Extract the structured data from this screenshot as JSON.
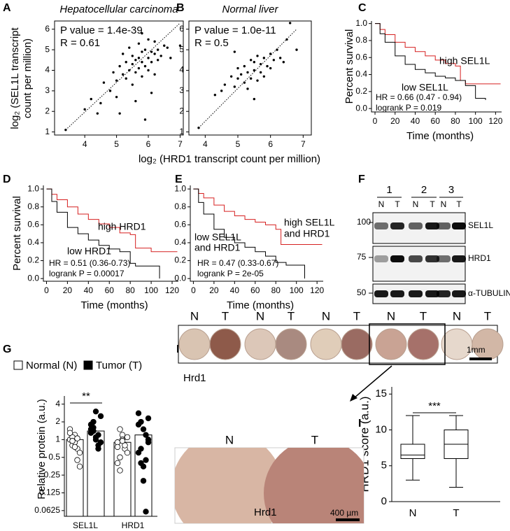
{
  "chart_data": [
    {
      "type": "scatter",
      "panel": "A",
      "title": "Hepatocellular carcinoma",
      "annotations": [
        "P value = 1.4e-39",
        "R = 0.61"
      ],
      "ylabel": [
        "log₂ (SEL1L transcript",
        "count per million)"
      ],
      "xlabel": "log₂ (HRD1 transcript count per million)",
      "x": [
        3.4,
        4.0,
        4.2,
        4.5,
        4.6,
        4.8,
        4.9,
        5.0,
        5.0,
        5.1,
        5.2,
        5.2,
        5.3,
        5.3,
        5.4,
        5.4,
        5.5,
        5.5,
        5.5,
        5.6,
        5.6,
        5.7,
        5.7,
        5.7,
        5.8,
        5.8,
        5.8,
        5.9,
        5.9,
        6.0,
        6.0,
        6.0,
        6.1,
        6.1,
        6.2,
        6.2,
        6.3,
        6.3,
        6.4,
        6.5,
        6.6,
        6.7,
        7.0,
        5.6,
        5.9,
        6.1,
        4.4,
        5.1,
        5.8,
        6.2
      ],
      "y": [
        1.1,
        2.1,
        2.6,
        2.4,
        3.4,
        3.0,
        3.9,
        3.5,
        2.7,
        4.2,
        3.8,
        4.8,
        3.6,
        4.4,
        4.0,
        5.1,
        4.3,
        3.3,
        4.7,
        4.5,
        3.9,
        4.6,
        4.1,
        5.3,
        4.4,
        4.9,
        3.7,
        4.2,
        5.0,
        4.6,
        4.0,
        5.5,
        4.4,
        4.9,
        4.8,
        5.4,
        4.5,
        5.0,
        4.7,
        5.2,
        5.1,
        4.6,
        5.2,
        2.5,
        1.6,
        2.9,
        1.9,
        1.9,
        5.8,
        3.8
      ],
      "fit": {
        "x": [
          3.4,
          7.0
        ],
        "y": [
          1.1,
          6.3
        ]
      },
      "xlim": [
        3.05,
        7.1
      ],
      "ylim": [
        0.85,
        6.4
      ],
      "xticks": [
        4,
        5,
        6,
        7
      ],
      "yticks": [
        1,
        2,
        3,
        4,
        5,
        6
      ],
      "color": "#000000"
    },
    {
      "type": "scatter",
      "panel": "B",
      "title": "Normal liver",
      "annotations": [
        "P value = 1.0e-11",
        "R = 0.5"
      ],
      "x": [
        3.8,
        4.3,
        4.5,
        4.6,
        4.8,
        4.9,
        5.0,
        5.0,
        5.1,
        5.2,
        5.2,
        5.3,
        5.3,
        5.4,
        5.4,
        5.5,
        5.5,
        5.6,
        5.6,
        5.7,
        5.7,
        5.8,
        5.8,
        5.9,
        6.0,
        6.0,
        6.1,
        6.2,
        6.3,
        6.5,
        6.6,
        6.8,
        5.5,
        4.9,
        6.4
      ],
      "y": [
        1.2,
        2.8,
        3.0,
        3.3,
        3.7,
        3.2,
        3.6,
        4.1,
        3.8,
        3.4,
        4.2,
        3.9,
        3.1,
        4.5,
        3.6,
        4.0,
        4.4,
        3.5,
        4.7,
        3.9,
        4.3,
        4.6,
        3.7,
        4.2,
        4.8,
        4.1,
        4.5,
        5.0,
        4.6,
        5.5,
        6.3,
        5.0,
        2.6,
        4.9,
        4.4
      ],
      "fit": {
        "x": [
          3.8,
          6.8
        ],
        "y": [
          1.2,
          6.0
        ]
      },
      "xlim": [
        3.5,
        7.25
      ],
      "ylim": [
        0.85,
        6.4
      ],
      "xticks": [
        4,
        5,
        6,
        7
      ],
      "yticks": [
        1,
        2,
        3,
        4,
        5,
        6
      ],
      "color": "#000000"
    },
    {
      "type": "survival",
      "panel": "C",
      "ylabel": "Percent survival",
      "xlabel": "Time (months)",
      "annotations": [
        "HR = 0.66 (0.47 - 0.94)",
        "logrank P = 0.019"
      ],
      "series": [
        {
          "name_lines": [
            "high SEL1L"
          ],
          "color": "#d62020",
          "x": [
            0,
            5,
            10,
            20,
            30,
            40,
            50,
            60,
            70,
            80,
            85,
            90,
            125
          ],
          "y": [
            1,
            0.93,
            0.87,
            0.78,
            0.72,
            0.67,
            0.62,
            0.57,
            0.53,
            0.5,
            0.33,
            0.29,
            0.29
          ]
        },
        {
          "name_lines": [
            "low SEL1L"
          ],
          "color": "#000000",
          "x": [
            0,
            5,
            10,
            20,
            30,
            40,
            50,
            60,
            70,
            80,
            90,
            100,
            110
          ],
          "y": [
            1,
            0.88,
            0.78,
            0.62,
            0.52,
            0.46,
            0.42,
            0.38,
            0.36,
            0.33,
            0.27,
            0.12,
            0.1
          ]
        }
      ],
      "xlim": [
        -3.5,
        126
      ],
      "ylim": [
        -0.04,
        1.03
      ],
      "xticks": [
        0,
        20,
        40,
        60,
        80,
        100,
        120
      ],
      "yticks": [
        {
          "value": 0,
          "label": "0.0"
        },
        0.2,
        0.4,
        0.6,
        0.8,
        {
          "value": 1,
          "label": "1.0"
        }
      ]
    },
    {
      "type": "survival",
      "panel": "D",
      "ylabel": "Percent survival",
      "xlabel": "Time (months)",
      "annotations": [
        "HR = 0.51 (0.36-0.73)",
        "logrank P = 0.00017"
      ],
      "series": [
        {
          "name_lines": [
            "high HRD1"
          ],
          "color": "#d62020",
          "x": [
            0,
            5,
            10,
            20,
            30,
            40,
            50,
            60,
            70,
            80,
            85,
            100,
            125
          ],
          "y": [
            1,
            0.94,
            0.88,
            0.8,
            0.72,
            0.66,
            0.61,
            0.57,
            0.51,
            0.49,
            0.34,
            0.3,
            0.3
          ]
        },
        {
          "name_lines": [
            "low HRD1"
          ],
          "color": "#000000",
          "x": [
            0,
            5,
            10,
            20,
            30,
            40,
            50,
            60,
            70,
            80,
            85,
            108
          ],
          "y": [
            1,
            0.86,
            0.74,
            0.57,
            0.5,
            0.43,
            0.37,
            0.33,
            0.3,
            0.17,
            0.14,
            0
          ]
        }
      ],
      "xlim": [
        -3,
        126
      ],
      "ylim": [
        -0.03,
        1.04
      ],
      "xticks": [
        0,
        20,
        40,
        60,
        80,
        100,
        120
      ],
      "yticks": [
        {
          "value": 0,
          "label": "0.0"
        },
        0.2,
        0.4,
        0.6,
        0.8,
        {
          "value": 1,
          "label": "1.0"
        }
      ]
    },
    {
      "type": "survival",
      "panel": "E",
      "xlabel": "Time (months)",
      "annotations": [
        "HR = 0.47 (0.33-0.67)",
        "logrank P = 2e-05"
      ],
      "series": [
        {
          "name_lines": [
            "high SEL1L",
            "and HRD1"
          ],
          "color": "#d62020",
          "x": [
            0,
            5,
            10,
            20,
            30,
            40,
            50,
            60,
            70,
            80,
            85,
            125
          ],
          "y": [
            1,
            0.95,
            0.9,
            0.82,
            0.75,
            0.7,
            0.66,
            0.63,
            0.6,
            0.55,
            0.38,
            0.38
          ]
        },
        {
          "name_lines": [
            "low SEL1L",
            "and HRD1"
          ],
          "color": "#000000",
          "x": [
            0,
            5,
            10,
            20,
            30,
            40,
            50,
            60,
            70,
            80,
            90,
            108
          ],
          "y": [
            1,
            0.85,
            0.72,
            0.55,
            0.46,
            0.4,
            0.35,
            0.3,
            0.25,
            0.18,
            0.15,
            0
          ]
        }
      ],
      "xlim": [
        -3,
        126
      ],
      "ylim": [
        -0.03,
        1.04
      ],
      "xticks": [
        0,
        20,
        40,
        60,
        80,
        100,
        120
      ],
      "yticks": [
        {
          "value": 0,
          "label": "0.0"
        },
        0.2,
        0.4,
        0.6,
        0.8,
        {
          "value": 1,
          "label": "1.0"
        }
      ]
    },
    {
      "type": "bar",
      "panel": "G",
      "ylabel": "Relative protein (a.u.)",
      "categories": [
        "SEL1L",
        "HRD1"
      ],
      "series": [
        {
          "name": "Normal (N)",
          "color": "#ffffff",
          "values": [
            1.0,
            0.9
          ],
          "points": [
            [
              1.0,
              0.8,
              1.2,
              0.7,
              0.6,
              1.5,
              1.1,
              0.9,
              0.45,
              0.35,
              1.3,
              0.95,
              0.75,
              1.05
            ],
            [
              0.9,
              1.5,
              1.2,
              0.7,
              0.6,
              0.4,
              0.3,
              1.0,
              0.8,
              1.1,
              0.75,
              0.5,
              0.95
            ]
          ]
        },
        {
          "name": "Tumor (T)",
          "color": "#000000",
          "values": [
            1.4,
            1.2
          ],
          "points": [
            [
              1.5,
              2.0,
              3.0,
              1.2,
              0.9,
              1.8,
              1.4,
              1.1,
              0.7,
              2.5,
              1.3,
              1.6,
              1.0,
              0.8
            ],
            [
              2.8,
              2.0,
              1.5,
              1.2,
              0.9,
              0.6,
              0.4,
              0.2,
              0.06,
              1.0,
              1.8,
              0.7,
              0.35,
              0.45,
              2.3
            ]
          ]
        }
      ],
      "significance": "**",
      "log_scale": true,
      "ylim": [
        0.05,
        5.5
      ],
      "yticks": [
        0.0625,
        0.125,
        0.25,
        0.5,
        1,
        2,
        4
      ]
    },
    {
      "type": "box",
      "panel": "I",
      "ylabel": "HRD1 score (a.u.)",
      "categories": [
        "N",
        "T"
      ],
      "boxes": [
        {
          "min": 3,
          "q1": 6,
          "median": 6.5,
          "q3": 8,
          "max": 12
        },
        {
          "min": 2,
          "q1": 6,
          "median": 8,
          "q3": 10,
          "max": 12
        }
      ],
      "significance": "***",
      "ylim": [
        0,
        16
      ],
      "yticks": [
        0,
        5,
        10,
        15
      ]
    }
  ],
  "blot": {
    "panel": "F",
    "samples": [
      "1",
      "2",
      "3"
    ],
    "lanes": [
      "N",
      "T",
      "N",
      "T",
      "N",
      "T"
    ],
    "markers": [
      "100",
      "75",
      "50"
    ],
    "proteins": [
      "SEL1L",
      "HRD1",
      "α-TUBULIN"
    ]
  },
  "tissue": {
    "panel": "H",
    "cores": [
      "N",
      "T",
      "N",
      "T",
      "N",
      "T",
      "N",
      "T",
      "N",
      "T"
    ],
    "scale_bar": "1mm",
    "stain": "Hrd1",
    "zoom": {
      "labels": [
        "N",
        "T"
      ],
      "stain": "Hrd1",
      "scale_bar": "400 µm"
    }
  }
}
